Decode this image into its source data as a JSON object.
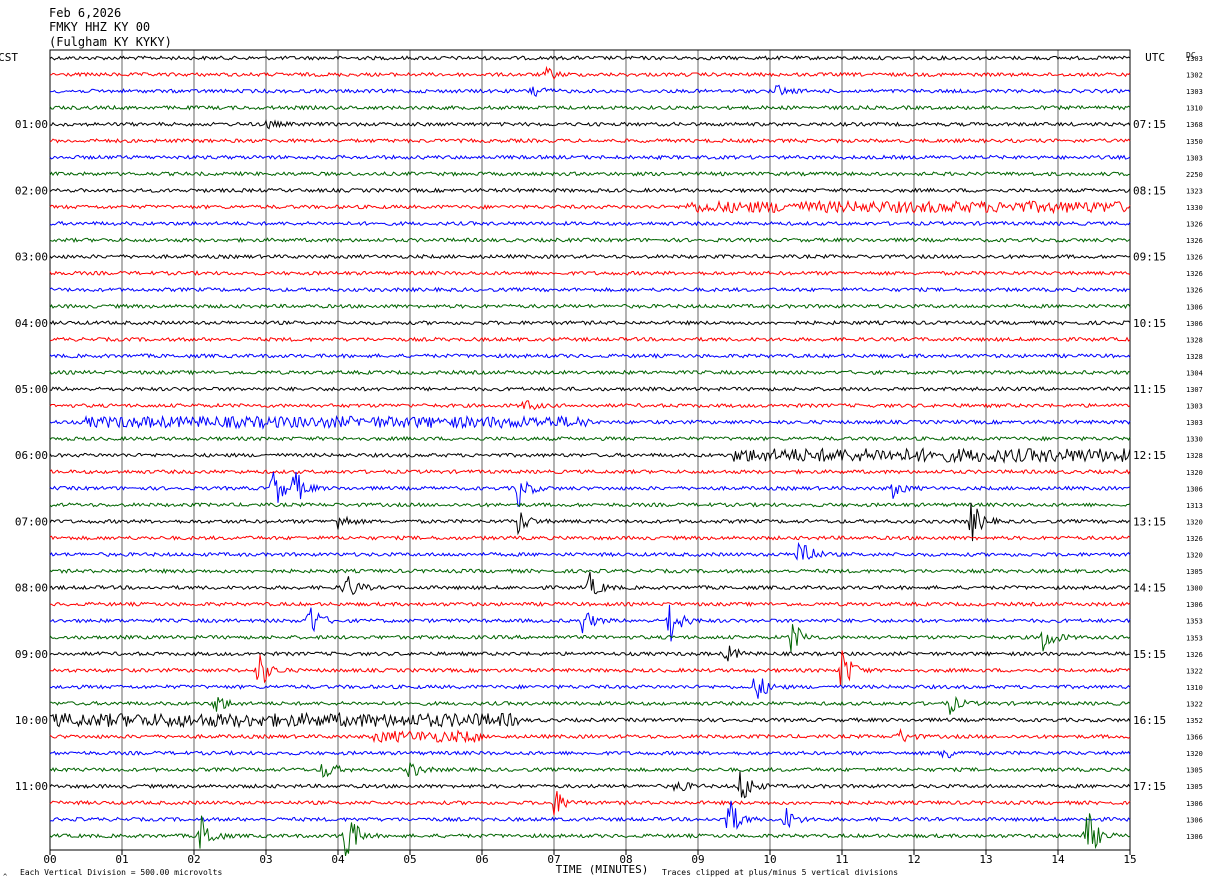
{
  "header": {
    "date": "Feb 6,2026",
    "station": "FMKY HHZ KY 00",
    "location": "(Fulgham KY KYKY)"
  },
  "chart_data": {
    "type": "line",
    "title": "Feb 6,2026",
    "left_axis_label": "CST",
    "right_axis_label": "UTC",
    "xlabel": "TIME (MINUTES)",
    "xlim": [
      0,
      15
    ],
    "x_ticks": [
      "00",
      "01",
      "02",
      "03",
      "04",
      "05",
      "06",
      "07",
      "08",
      "09",
      "10",
      "11",
      "12",
      "13",
      "14",
      "15"
    ],
    "rows_per_hour": 4,
    "row_minutes": 15,
    "trace_count": 48,
    "trace_colors": [
      "#000000",
      "#ff0000",
      "#0000ff",
      "#006400"
    ],
    "left_time_labels": [
      {
        "row": 4,
        "label": "01:00"
      },
      {
        "row": 8,
        "label": "02:00"
      },
      {
        "row": 12,
        "label": "03:00"
      },
      {
        "row": 16,
        "label": "04:00"
      },
      {
        "row": 20,
        "label": "05:00"
      },
      {
        "row": 24,
        "label": "06:00"
      },
      {
        "row": 28,
        "label": "07:00"
      },
      {
        "row": 32,
        "label": "08:00"
      },
      {
        "row": 36,
        "label": "09:00"
      },
      {
        "row": 40,
        "label": "10:00"
      },
      {
        "row": 44,
        "label": "11:00"
      }
    ],
    "right_time_labels": [
      {
        "row": 4,
        "label": "07:15"
      },
      {
        "row": 8,
        "label": "08:15"
      },
      {
        "row": 12,
        "label": "09:15"
      },
      {
        "row": 16,
        "label": "10:15"
      },
      {
        "row": 20,
        "label": "11:15"
      },
      {
        "row": 24,
        "label": "12:15"
      },
      {
        "row": 28,
        "label": "13:15"
      },
      {
        "row": 32,
        "label": "14:15"
      },
      {
        "row": 36,
        "label": "15:15"
      },
      {
        "row": 40,
        "label": "16:15"
      },
      {
        "row": 44,
        "label": "17:15"
      }
    ],
    "dc_header": "DC",
    "dc_offsets": [
      "1303",
      "1302",
      "1303",
      "1310",
      "1368",
      "1350",
      "1303",
      "2250",
      "1323",
      "1330",
      "1326",
      "1326",
      "1326",
      "1326",
      "1326",
      "1306",
      "1306",
      "1328",
      "1328",
      "1304",
      "1307",
      "1303",
      "1303",
      "1330",
      "1328",
      "1320",
      "1306",
      "1313",
      "1320",
      "1326",
      "1320",
      "1305",
      "1300",
      "1306",
      "1353",
      "1353",
      "1326",
      "1322",
      "1310",
      "1322",
      "1352",
      "1366",
      "1320",
      "1305",
      "1305",
      "1306",
      "1306",
      "1306"
    ],
    "bursts": [
      {
        "row": 1,
        "minute": 6.9,
        "amp": 7
      },
      {
        "row": 2,
        "minute": 6.7,
        "amp": 9
      },
      {
        "row": 2,
        "minute": 10.1,
        "amp": 6
      },
      {
        "row": 4,
        "minute": 3.0,
        "amp": 5
      },
      {
        "row": 21,
        "minute": 6.6,
        "amp": 7
      },
      {
        "row": 26,
        "minute": 3.1,
        "amp": 24
      },
      {
        "row": 26,
        "minute": 3.4,
        "amp": 18
      },
      {
        "row": 26,
        "minute": 6.5,
        "amp": 20
      },
      {
        "row": 26,
        "minute": 11.7,
        "amp": 10
      },
      {
        "row": 28,
        "minute": 4.0,
        "amp": 10
      },
      {
        "row": 28,
        "minute": 6.5,
        "amp": 14
      },
      {
        "row": 28,
        "minute": 12.8,
        "amp": 22
      },
      {
        "row": 30,
        "minute": 10.4,
        "amp": 28
      },
      {
        "row": 32,
        "minute": 4.1,
        "amp": 18
      },
      {
        "row": 32,
        "minute": 7.5,
        "amp": 14
      },
      {
        "row": 34,
        "minute": 3.6,
        "amp": 22
      },
      {
        "row": 34,
        "minute": 7.4,
        "amp": 14
      },
      {
        "row": 34,
        "minute": 8.6,
        "amp": 26
      },
      {
        "row": 35,
        "minute": 10.3,
        "amp": 20
      },
      {
        "row": 35,
        "minute": 13.8,
        "amp": 18
      },
      {
        "row": 36,
        "minute": 9.4,
        "amp": 10
      },
      {
        "row": 37,
        "minute": 2.9,
        "amp": 22
      },
      {
        "row": 37,
        "minute": 11.0,
        "amp": 26
      },
      {
        "row": 38,
        "minute": 9.8,
        "amp": 18
      },
      {
        "row": 39,
        "minute": 2.3,
        "amp": 12
      },
      {
        "row": 39,
        "minute": 12.5,
        "amp": 10
      },
      {
        "row": 41,
        "minute": 11.8,
        "amp": 8
      },
      {
        "row": 42,
        "minute": 12.4,
        "amp": 9
      },
      {
        "row": 43,
        "minute": 3.8,
        "amp": 12
      },
      {
        "row": 43,
        "minute": 5.0,
        "amp": 10
      },
      {
        "row": 44,
        "minute": 9.6,
        "amp": 22
      },
      {
        "row": 44,
        "minute": 8.7,
        "amp": 8
      },
      {
        "row": 45,
        "minute": 7.0,
        "amp": 16
      },
      {
        "row": 46,
        "minute": 9.4,
        "amp": 30
      },
      {
        "row": 46,
        "minute": 10.2,
        "amp": 14
      },
      {
        "row": 47,
        "minute": 2.1,
        "amp": 24
      },
      {
        "row": 47,
        "minute": 4.1,
        "amp": 36
      },
      {
        "row": 47,
        "minute": 14.4,
        "amp": 30
      }
    ],
    "noisy_rows": [
      {
        "row": 9,
        "from": 8.8,
        "to": 15,
        "amp": 4
      },
      {
        "row": 22,
        "from": 0.5,
        "to": 7.5,
        "amp": 4
      },
      {
        "row": 24,
        "from": 9.5,
        "to": 15,
        "amp": 5
      },
      {
        "row": 40,
        "from": 0,
        "to": 6.5,
        "amp": 5
      },
      {
        "row": 41,
        "from": 4.5,
        "to": 6.0,
        "amp": 4
      }
    ],
    "footer_left": "Each Vertical Division =  500.00 microvolts",
    "footer_right": "Traces clipped at plus/minus 5 vertical divisions",
    "footer_mark": "^",
    "grid": true
  }
}
